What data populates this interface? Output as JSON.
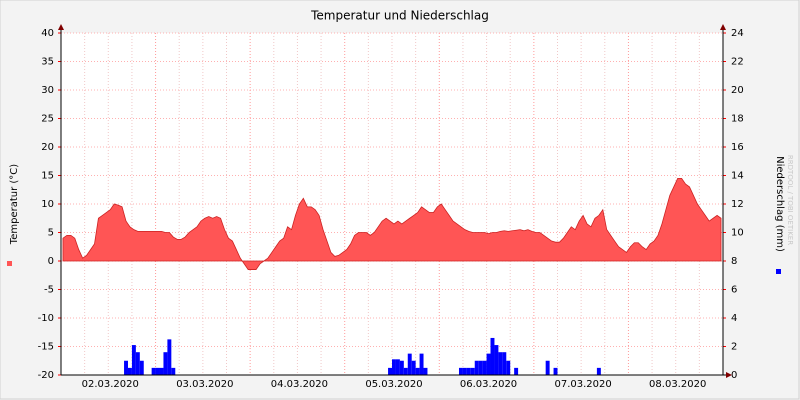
{
  "chart_data": {
    "type": "area",
    "title": "Temperatur und Niederschlag",
    "ylabel": "Temperatur (°C)",
    "y2label": "Niederschlag (mm)",
    "watermark": "RRDTOOL / TOBI OETIKER",
    "ylim": [
      -20,
      40
    ],
    "yticks": [
      -20,
      -15,
      -10,
      -5,
      0,
      5,
      10,
      15,
      20,
      25,
      30,
      35,
      40
    ],
    "y2lim": [
      0,
      24
    ],
    "y2ticks": [
      0,
      2,
      4,
      6,
      8,
      10,
      12,
      14,
      16,
      18,
      20,
      22,
      24
    ],
    "grid": true,
    "categories": [
      null,
      null,
      null,
      null,
      null,
      null,
      null,
      null,
      null,
      null,
      null,
      null,
      "02.03.2020",
      null,
      null,
      null,
      null,
      null,
      null,
      null,
      null,
      null,
      null,
      null,
      null,
      null,
      null,
      null,
      null,
      null,
      null,
      null,
      null,
      null,
      null,
      null,
      "03.03.2020",
      null,
      null,
      null,
      null,
      null,
      null,
      null,
      null,
      null,
      null,
      null,
      null,
      null,
      null,
      null,
      null,
      null,
      null,
      null,
      null,
      null,
      null,
      null,
      "04.03.2020",
      null,
      null,
      null,
      null,
      null,
      null,
      null,
      null,
      null,
      null,
      null,
      null,
      null,
      null,
      null,
      null,
      null,
      null,
      null,
      null,
      null,
      null,
      null,
      "05.03.2020",
      null,
      null,
      null,
      null,
      null,
      null,
      null,
      null,
      null,
      null,
      null,
      null,
      null,
      null,
      null,
      null,
      null,
      null,
      null,
      null,
      null,
      null,
      null,
      "06.03.2020",
      null,
      null,
      null,
      null,
      null,
      null,
      null,
      null,
      null,
      null,
      null,
      null,
      null,
      null,
      null,
      null,
      null,
      null,
      null,
      null,
      null,
      null,
      null,
      "07.03.2020",
      null,
      null,
      null,
      null,
      null,
      null,
      null,
      null,
      null,
      null,
      null,
      null,
      null,
      null,
      null,
      null,
      null,
      null,
      null,
      null,
      null,
      null,
      null,
      "08.03.2020",
      null,
      null,
      null,
      null,
      null,
      null,
      null,
      null,
      null,
      null,
      null
    ],
    "series": [
      {
        "name": "Temperatur",
        "color": "#ff5555",
        "type": "area",
        "values": [
          4,
          4.5,
          4.5,
          4,
          2,
          0.5,
          1,
          2,
          3,
          7.5,
          8,
          8.5,
          9,
          10,
          9.8,
          9.5,
          7,
          6,
          5.5,
          5.2,
          5.2,
          5.2,
          5.2,
          5.2,
          5.2,
          5.2,
          5,
          5,
          4.2,
          3.8,
          3.8,
          4.2,
          5,
          5.5,
          6,
          7,
          7.5,
          7.8,
          7.5,
          7.8,
          7.5,
          5.5,
          4,
          3.5,
          2,
          0.5,
          -0.5,
          -1.5,
          -1.5,
          -1.5,
          -0.5,
          0,
          0.5,
          1.5,
          2.5,
          3.5,
          4,
          6,
          5.5,
          8,
          10,
          11,
          9.5,
          9.5,
          9,
          8,
          5.5,
          3.5,
          1.5,
          0.8,
          1,
          1.5,
          2,
          3,
          4.5,
          5,
          5,
          5,
          4.5,
          5,
          6,
          7,
          7.5,
          7,
          6.5,
          7,
          6.5,
          7,
          7.5,
          8,
          8.5,
          9.5,
          9,
          8.5,
          8.5,
          9.5,
          10,
          9,
          8,
          7,
          6.5,
          6,
          5.5,
          5.2,
          5,
          5,
          5,
          5,
          4.8,
          5,
          5,
          5.2,
          5.3,
          5.2,
          5.3,
          5.4,
          5.5,
          5.3,
          5.5,
          5.2,
          5,
          5,
          4.5,
          4,
          3.5,
          3.3,
          3.3,
          4,
          5,
          6,
          5.5,
          7,
          8,
          6.5,
          6,
          7.5,
          8,
          9,
          5.5,
          4.5,
          3.5,
          2.5,
          2,
          1.5,
          2.5,
          3.2,
          3.2,
          2.5,
          2,
          3,
          3.5,
          4.5,
          6.5,
          9,
          11.5,
          13,
          14.5,
          14.5,
          13.5,
          13,
          11.5,
          10,
          9,
          8,
          7,
          7.5,
          8,
          7.5
        ]
      },
      {
        "name": "Niederschlag",
        "color": "#0000ff",
        "type": "bar",
        "axis": "y2",
        "values": [
          0,
          0,
          0,
          0,
          0,
          0,
          0,
          0,
          0,
          0,
          0,
          0,
          0,
          0,
          0,
          0,
          1.0,
          0.5,
          2.1,
          1.6,
          1.0,
          0,
          0,
          0.5,
          0.5,
          0.5,
          1.6,
          2.5,
          0.5,
          0,
          0,
          0,
          0,
          0,
          0,
          0,
          0,
          0,
          0,
          0,
          0,
          0,
          0,
          0,
          0,
          0,
          0,
          0,
          0,
          0,
          0,
          0,
          0,
          0,
          0,
          0,
          0,
          0,
          0,
          0,
          0,
          0,
          0,
          0,
          0,
          0,
          0,
          0,
          0,
          0,
          0,
          0,
          0,
          0,
          0,
          0,
          0,
          0,
          0,
          0,
          0,
          0,
          0,
          0.5,
          1.1,
          1.1,
          1.0,
          0.5,
          1.5,
          1.0,
          0.5,
          1.5,
          0.5,
          0,
          0,
          0,
          0,
          0,
          0,
          0,
          0,
          0.5,
          0.5,
          0.5,
          0.5,
          1.0,
          1.0,
          1.0,
          1.5,
          2.6,
          2.1,
          1.6,
          1.6,
          1.0,
          0,
          0.5,
          0,
          0,
          0,
          0,
          0,
          0,
          0,
          1.0,
          0,
          0.5,
          0,
          0,
          0,
          0,
          0,
          0,
          0,
          0,
          0,
          0,
          0.5,
          0,
          0,
          0,
          0,
          0,
          0,
          0,
          0,
          0,
          0,
          0,
          0,
          0,
          0,
          0,
          0,
          0,
          0,
          0,
          0,
          0,
          0,
          0,
          0,
          0,
          0,
          0,
          0,
          0,
          0,
          0
        ]
      }
    ]
  }
}
